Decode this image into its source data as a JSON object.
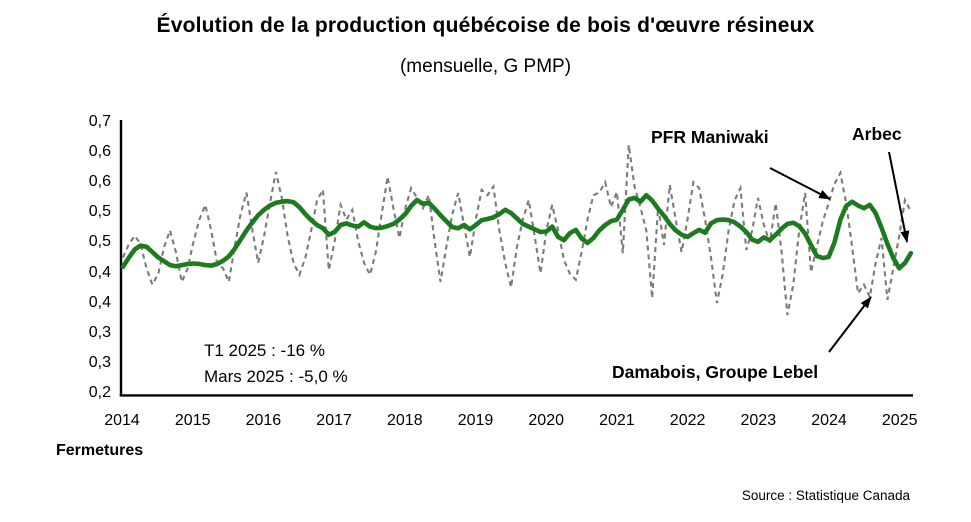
{
  "page": {
    "background": "#ffffff"
  },
  "chart_data": {
    "type": "line",
    "title": "Évolution de la production québécoise de bois d'œuvre résineux",
    "subtitle": "(mensuelle, G PMP)",
    "x_start_month": "2014-01",
    "x_end_month": "2025-03",
    "grid": false,
    "legend_position": "none",
    "x_axis": {
      "tick_labels": [
        "2014",
        "2015",
        "2016",
        "2017",
        "2018",
        "2019",
        "2020",
        "2021",
        "2022",
        "2023",
        "2024",
        "2025"
      ]
    },
    "y_axis": {
      "min": 0.2,
      "max": 0.7,
      "tick_labels": [
        "0,7",
        "0,6",
        "0,6",
        "0,5",
        "0,5",
        "0,4",
        "0,4",
        "0,3",
        "0,3",
        "0,2"
      ]
    },
    "series": [
      {
        "id": "monthly",
        "style": "dashed",
        "color": "#7b7b7b",
        "values": [
          0.45,
          0.475,
          0.49,
          0.475,
          0.43,
          0.4,
          0.42,
          0.47,
          0.5,
          0.46,
          0.405,
          0.43,
          0.48,
          0.52,
          0.547,
          0.5,
          0.44,
          0.43,
          0.405,
          0.47,
          0.53,
          0.57,
          0.5,
          0.44,
          0.49,
          0.55,
          0.608,
          0.56,
          0.49,
          0.44,
          0.418,
          0.449,
          0.5,
          0.555,
          0.575,
          0.427,
          0.48,
          0.547,
          0.52,
          0.538,
          0.48,
          0.44,
          0.418,
          0.46,
          0.53,
          0.599,
          0.54,
          0.486,
          0.54,
          0.578,
          0.56,
          0.541,
          0.565,
          0.48,
          0.405,
          0.47,
          0.53,
          0.569,
          0.51,
          0.451,
          0.52,
          0.575,
          0.565,
          0.581,
          0.5,
          0.44,
          0.395,
          0.47,
          0.52,
          0.556,
          0.49,
          0.421,
          0.5,
          0.547,
          0.5,
          0.445,
          0.42,
          0.409,
          0.46,
          0.52,
          0.565,
          0.57,
          0.589,
          0.543,
          0.571,
          0.458,
          0.658,
          0.58,
          0.543,
          0.5,
          0.375,
          0.543,
          0.473,
          0.584,
          0.52,
          0.46,
          0.52,
          0.589,
          0.578,
          0.52,
          0.45,
          0.366,
          0.42,
          0.5,
          0.555,
          0.578,
          0.464,
          0.5,
          0.56,
          0.51,
          0.477,
          0.55,
          0.46,
          0.344,
          0.4,
          0.5,
          0.569,
          0.423,
          0.47,
          0.516,
          0.55,
          0.586,
          0.606,
          0.55,
          0.47,
          0.384,
          0.4,
          0.377,
          0.44,
          0.486,
          0.372,
          0.43,
          0.49,
          0.556,
          0.535
        ]
      },
      {
        "id": "trend",
        "style": "solid",
        "color": "#1e7a1e",
        "values": [
          0.433,
          0.45,
          0.465,
          0.472,
          0.47,
          0.46,
          0.45,
          0.443,
          0.436,
          0.434,
          0.436,
          0.438,
          0.439,
          0.438,
          0.436,
          0.435,
          0.438,
          0.444,
          0.452,
          0.466,
          0.483,
          0.5,
          0.515,
          0.528,
          0.538,
          0.546,
          0.551,
          0.553,
          0.554,
          0.552,
          0.543,
          0.53,
          0.519,
          0.51,
          0.504,
          0.492,
          0.497,
          0.51,
          0.513,
          0.509,
          0.507,
          0.515,
          0.507,
          0.504,
          0.505,
          0.508,
          0.512,
          0.52,
          0.53,
          0.545,
          0.556,
          0.549,
          0.551,
          0.54,
          0.528,
          0.517,
          0.506,
          0.504,
          0.51,
          0.502,
          0.51,
          0.519,
          0.521,
          0.524,
          0.53,
          0.538,
          0.532,
          0.522,
          0.512,
          0.507,
          0.502,
          0.497,
          0.498,
          0.507,
          0.488,
          0.482,
          0.495,
          0.501,
          0.485,
          0.477,
          0.486,
          0.5,
          0.51,
          0.517,
          0.52,
          0.538,
          0.557,
          0.56,
          0.553,
          0.565,
          0.555,
          0.54,
          0.527,
          0.512,
          0.5,
          0.492,
          0.488,
          0.495,
          0.501,
          0.496,
          0.513,
          0.519,
          0.52,
          0.519,
          0.515,
          0.507,
          0.497,
          0.483,
          0.479,
          0.487,
          0.482,
          0.492,
          0.503,
          0.512,
          0.514,
          0.508,
          0.494,
          0.473,
          0.453,
          0.449,
          0.451,
          0.478,
          0.52,
          0.545,
          0.553,
          0.546,
          0.541,
          0.547,
          0.532,
          0.505,
          0.475,
          0.449,
          0.43,
          0.44,
          0.458
        ]
      }
    ]
  },
  "annotations": {
    "pfr_maniwaki": "PFR Maniwaki",
    "arbec": "Arbec",
    "damabois": "Damabois, Groupe Lebel",
    "note_line1": "T1 2025 : -16 %",
    "note_line2": "Mars 2025 : -5,0 %",
    "fermetures": "Fermetures",
    "source": "Source : Statistique Canada"
  }
}
